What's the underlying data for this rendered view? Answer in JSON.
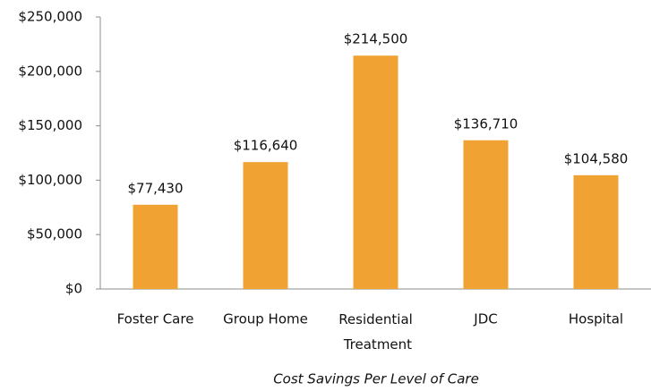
{
  "chart_data": {
    "type": "bar",
    "x_label": "Cost Savings Per Level of Care",
    "categories": [
      "Foster Care",
      "Group Home",
      "Residential Treatment",
      "JDC",
      "Hospital"
    ],
    "values": [
      77430,
      116640,
      214500,
      136710,
      104580
    ],
    "value_labels": [
      "$77,430",
      "$116,640",
      "$214,500",
      "$136,710",
      "$104,580"
    ],
    "color": "#f0a232",
    "ylim": [
      0,
      250000
    ],
    "yticks": [
      {
        "value": 0,
        "label": "$0"
      },
      {
        "value": 50000,
        "label": "$50,000"
      },
      {
        "value": 100000,
        "label": "$100,000"
      },
      {
        "value": 150000,
        "label": "$150,000"
      },
      {
        "value": 200000,
        "label": "$200,000"
      },
      {
        "value": 250000,
        "label": "$250,000"
      }
    ],
    "grid": false
  }
}
